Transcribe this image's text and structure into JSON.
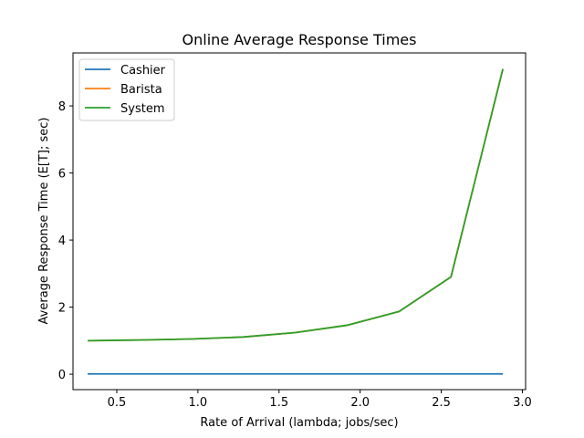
{
  "chart_data": {
    "type": "line",
    "title": "Online Average Response Times",
    "xlabel": "Rate of Arrival (lambda; jobs/sec)",
    "ylabel": "Average Response Time (E[T]; sec)",
    "xlim": [
      0.23,
      3.02
    ],
    "ylim": [
      -0.46,
      9.58
    ],
    "xticks": [
      "0.5",
      "1.0",
      "1.5",
      "2.0",
      "2.5",
      "3.0"
    ],
    "yticks": [
      "0",
      "2",
      "4",
      "6",
      "8"
    ],
    "grid": false,
    "legend_position": "upper-left",
    "x": [
      0.32,
      0.64,
      0.96,
      1.28,
      1.6,
      1.92,
      2.24,
      2.56,
      2.88
    ],
    "series": [
      {
        "name": "Cashier",
        "color": "#1f77b4",
        "values": [
          0.01,
          0.01,
          0.01,
          0.01,
          0.01,
          0.01,
          0.01,
          0.01,
          0.01
        ]
      },
      {
        "name": "Barista",
        "color": "#ff7f0e",
        "values": [
          1.0,
          1.02,
          1.05,
          1.11,
          1.24,
          1.46,
          1.87,
          2.9,
          9.1
        ]
      },
      {
        "name": "System",
        "color": "#2ca02c",
        "values": [
          1.0,
          1.02,
          1.05,
          1.11,
          1.24,
          1.46,
          1.87,
          2.9,
          9.1
        ]
      }
    ]
  }
}
